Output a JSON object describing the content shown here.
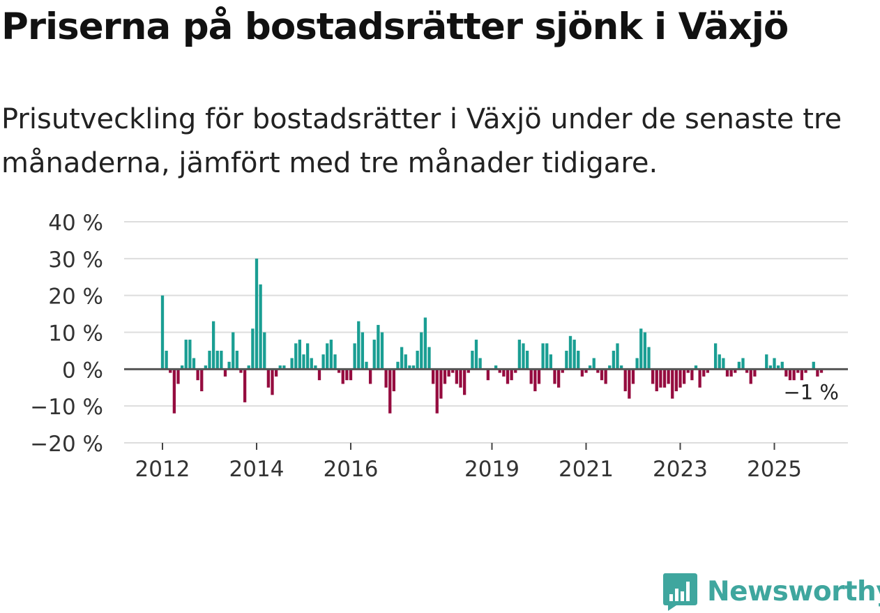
{
  "header": {
    "title": "Priserna på bostadsrätter sjönk i Växjö",
    "subtitle": "Prisutveckling för bostadsrätter i Växjö under de senaste tre månaderna, jämfört med tre månader tidigare."
  },
  "brand": {
    "name": "Newsworthy",
    "icon": "newsworthy-logo-icon",
    "color": "#3fa69e"
  },
  "chart_data": {
    "type": "bar",
    "title": "",
    "xlabel": "",
    "ylabel": "",
    "ylim": [
      -20,
      40
    ],
    "yticks": [
      {
        "value": 40,
        "label": "40 %"
      },
      {
        "value": 30,
        "label": "30 %"
      },
      {
        "value": 20,
        "label": "20 %"
      },
      {
        "value": 10,
        "label": "10 %"
      },
      {
        "value": 0,
        "label": "0 %"
      },
      {
        "value": -10,
        "label": "−10 %"
      },
      {
        "value": -20,
        "label": "−20 %"
      }
    ],
    "xticks": [
      {
        "index": 0,
        "label": "2012"
      },
      {
        "index": 24,
        "label": "2014"
      },
      {
        "index": 48,
        "label": "2016"
      },
      {
        "index": 84,
        "label": "2019"
      },
      {
        "index": 108,
        "label": "2021"
      },
      {
        "index": 132,
        "label": "2023"
      },
      {
        "index": 156,
        "label": "2025"
      }
    ],
    "start": "2012-01",
    "frequency": "monthly",
    "colors": {
      "positive": "#1a9e93",
      "negative": "#950c3f",
      "zero_line": "#555555",
      "grid": "#dddddd"
    },
    "last_label": "−1 %",
    "values": [
      20,
      5,
      -1,
      -12,
      -4,
      1,
      8,
      8,
      3,
      -3,
      -6,
      1,
      5,
      13,
      5,
      5,
      -2,
      2,
      10,
      5,
      -1,
      -9,
      1,
      11,
      30,
      23,
      10,
      -5,
      -7,
      -2,
      1,
      1,
      0,
      3,
      7,
      8,
      4,
      7,
      3,
      1,
      -3,
      4,
      7,
      8,
      4,
      -1,
      -4,
      -3,
      -3,
      7,
      13,
      10,
      2,
      -4,
      8,
      12,
      10,
      -5,
      -12,
      -6,
      2,
      6,
      4,
      1,
      1,
      5,
      10,
      14,
      6,
      -4,
      -12,
      -8,
      -4,
      -2,
      -1,
      -4,
      -5,
      -7,
      -1,
      5,
      8,
      3,
      0,
      -3,
      0,
      1,
      -1,
      -2,
      -4,
      -3,
      -1,
      8,
      7,
      5,
      -4,
      -6,
      -4,
      7,
      7,
      4,
      -4,
      -5,
      -1,
      5,
      9,
      8,
      5,
      -2,
      -1,
      1,
      3,
      -1,
      -3,
      -4,
      1,
      5,
      7,
      1,
      -6,
      -8,
      -4,
      3,
      11,
      10,
      6,
      -4,
      -6,
      -5,
      -5,
      -4,
      -8,
      -6,
      -5,
      -4,
      -1,
      -3,
      1,
      -5,
      -2,
      -1,
      0,
      7,
      4,
      3,
      -2,
      -2,
      -1,
      2,
      3,
      -1,
      -4,
      -2,
      0,
      0,
      4,
      1,
      3,
      1,
      2,
      -2,
      -3,
      -3,
      -1,
      -3,
      -1,
      0,
      2,
      -2,
      -1
    ]
  }
}
